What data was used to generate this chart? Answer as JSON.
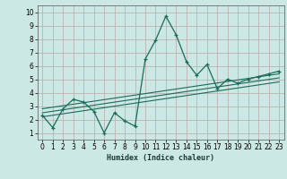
{
  "xlabel": "Humidex (Indice chaleur)",
  "bg_color": "#cce8e4",
  "grid_color": "#b8a8a8",
  "line_color": "#1a6b5a",
  "xlim": [
    -0.5,
    23.5
  ],
  "ylim": [
    0.5,
    10.5
  ],
  "xticks": [
    0,
    1,
    2,
    3,
    4,
    5,
    6,
    7,
    8,
    9,
    10,
    11,
    12,
    13,
    14,
    15,
    16,
    17,
    18,
    19,
    20,
    21,
    22,
    23
  ],
  "yticks": [
    1,
    2,
    3,
    4,
    5,
    6,
    7,
    8,
    9,
    10
  ],
  "main_x": [
    0,
    1,
    2,
    3,
    4,
    5,
    6,
    7,
    8,
    9,
    10,
    11,
    12,
    13,
    14,
    15,
    16,
    17,
    18,
    19,
    20,
    21,
    22,
    23
  ],
  "main_y": [
    2.3,
    1.4,
    2.8,
    3.5,
    3.3,
    2.6,
    1.0,
    2.5,
    1.9,
    1.5,
    6.5,
    7.9,
    9.7,
    8.3,
    6.3,
    5.3,
    6.1,
    4.3,
    5.0,
    4.7,
    5.0,
    5.2,
    5.4,
    5.6
  ],
  "trend_lines": [
    {
      "x": [
        0,
        23
      ],
      "y": [
        2.2,
        4.8
      ]
    },
    {
      "x": [
        0,
        23
      ],
      "y": [
        2.5,
        5.1
      ]
    },
    {
      "x": [
        0,
        23
      ],
      "y": [
        2.8,
        5.4
      ]
    }
  ],
  "xlabel_fontsize": 6.0,
  "tick_fontsize": 5.5,
  "line_width": 0.9,
  "marker_size": 3.5
}
